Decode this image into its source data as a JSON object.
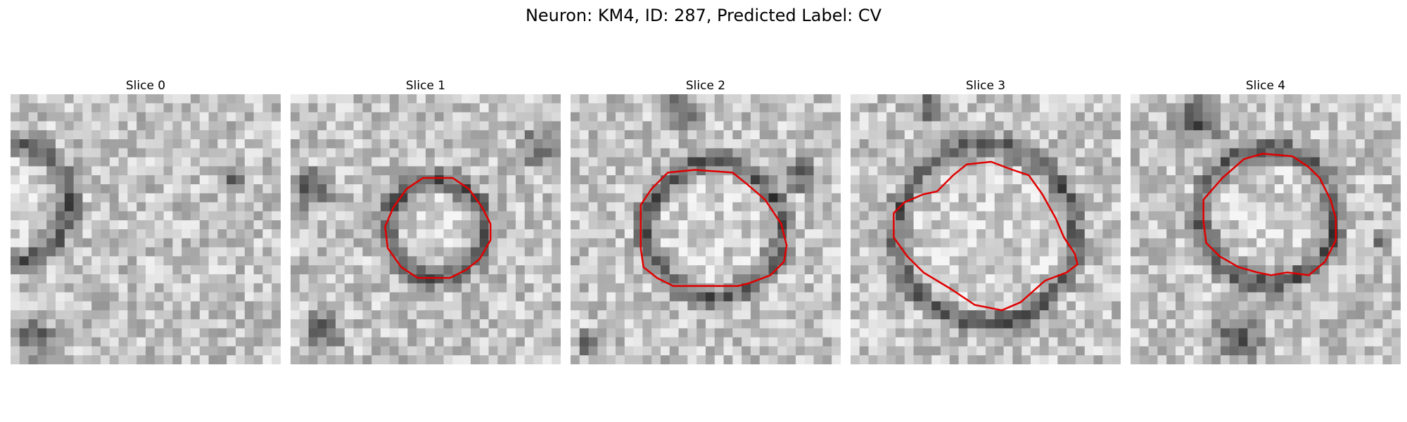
{
  "figure": {
    "title": "Neuron: KM4, ID: 287, Predicted Label: CV"
  },
  "panels": [
    {
      "title": "Slice 0",
      "contour": []
    },
    {
      "title": "Slice 1",
      "contour": [
        [
          0.49,
          0.31
        ],
        [
          0.6,
          0.31
        ],
        [
          0.66,
          0.35
        ],
        [
          0.71,
          0.42
        ],
        [
          0.74,
          0.48
        ],
        [
          0.74,
          0.54
        ],
        [
          0.7,
          0.61
        ],
        [
          0.65,
          0.65
        ],
        [
          0.59,
          0.68
        ],
        [
          0.47,
          0.68
        ],
        [
          0.41,
          0.64
        ],
        [
          0.36,
          0.57
        ],
        [
          0.35,
          0.49
        ],
        [
          0.38,
          0.42
        ],
        [
          0.43,
          0.35
        ]
      ]
    },
    {
      "title": "Slice 2",
      "contour": [
        [
          0.36,
          0.29
        ],
        [
          0.46,
          0.28
        ],
        [
          0.6,
          0.29
        ],
        [
          0.65,
          0.33
        ],
        [
          0.72,
          0.39
        ],
        [
          0.78,
          0.48
        ],
        [
          0.8,
          0.56
        ],
        [
          0.79,
          0.62
        ],
        [
          0.74,
          0.67
        ],
        [
          0.66,
          0.7
        ],
        [
          0.62,
          0.71
        ],
        [
          0.38,
          0.71
        ],
        [
          0.32,
          0.68
        ],
        [
          0.27,
          0.64
        ],
        [
          0.26,
          0.57
        ],
        [
          0.26,
          0.41
        ],
        [
          0.3,
          0.35
        ]
      ]
    },
    {
      "title": "Slice 3",
      "contour": [
        [
          0.32,
          0.36
        ],
        [
          0.38,
          0.3
        ],
        [
          0.43,
          0.26
        ],
        [
          0.52,
          0.25
        ],
        [
          0.6,
          0.28
        ],
        [
          0.66,
          0.3
        ],
        [
          0.71,
          0.37
        ],
        [
          0.76,
          0.46
        ],
        [
          0.79,
          0.53
        ],
        [
          0.83,
          0.59
        ],
        [
          0.84,
          0.63
        ],
        [
          0.8,
          0.66
        ],
        [
          0.72,
          0.69
        ],
        [
          0.63,
          0.77
        ],
        [
          0.56,
          0.8
        ],
        [
          0.46,
          0.78
        ],
        [
          0.37,
          0.72
        ],
        [
          0.27,
          0.66
        ],
        [
          0.21,
          0.6
        ],
        [
          0.16,
          0.53
        ],
        [
          0.16,
          0.44
        ],
        [
          0.2,
          0.4
        ],
        [
          0.27,
          0.37
        ]
      ]
    },
    {
      "title": "Slice 4",
      "contour": [
        [
          0.27,
          0.39
        ],
        [
          0.34,
          0.31
        ],
        [
          0.42,
          0.24
        ],
        [
          0.49,
          0.22
        ],
        [
          0.6,
          0.23
        ],
        [
          0.66,
          0.27
        ],
        [
          0.7,
          0.31
        ],
        [
          0.74,
          0.39
        ],
        [
          0.76,
          0.46
        ],
        [
          0.76,
          0.54
        ],
        [
          0.72,
          0.62
        ],
        [
          0.66,
          0.67
        ],
        [
          0.58,
          0.66
        ],
        [
          0.52,
          0.67
        ],
        [
          0.47,
          0.66
        ],
        [
          0.4,
          0.64
        ],
        [
          0.33,
          0.6
        ],
        [
          0.28,
          0.55
        ],
        [
          0.27,
          0.47
        ]
      ]
    }
  ]
}
